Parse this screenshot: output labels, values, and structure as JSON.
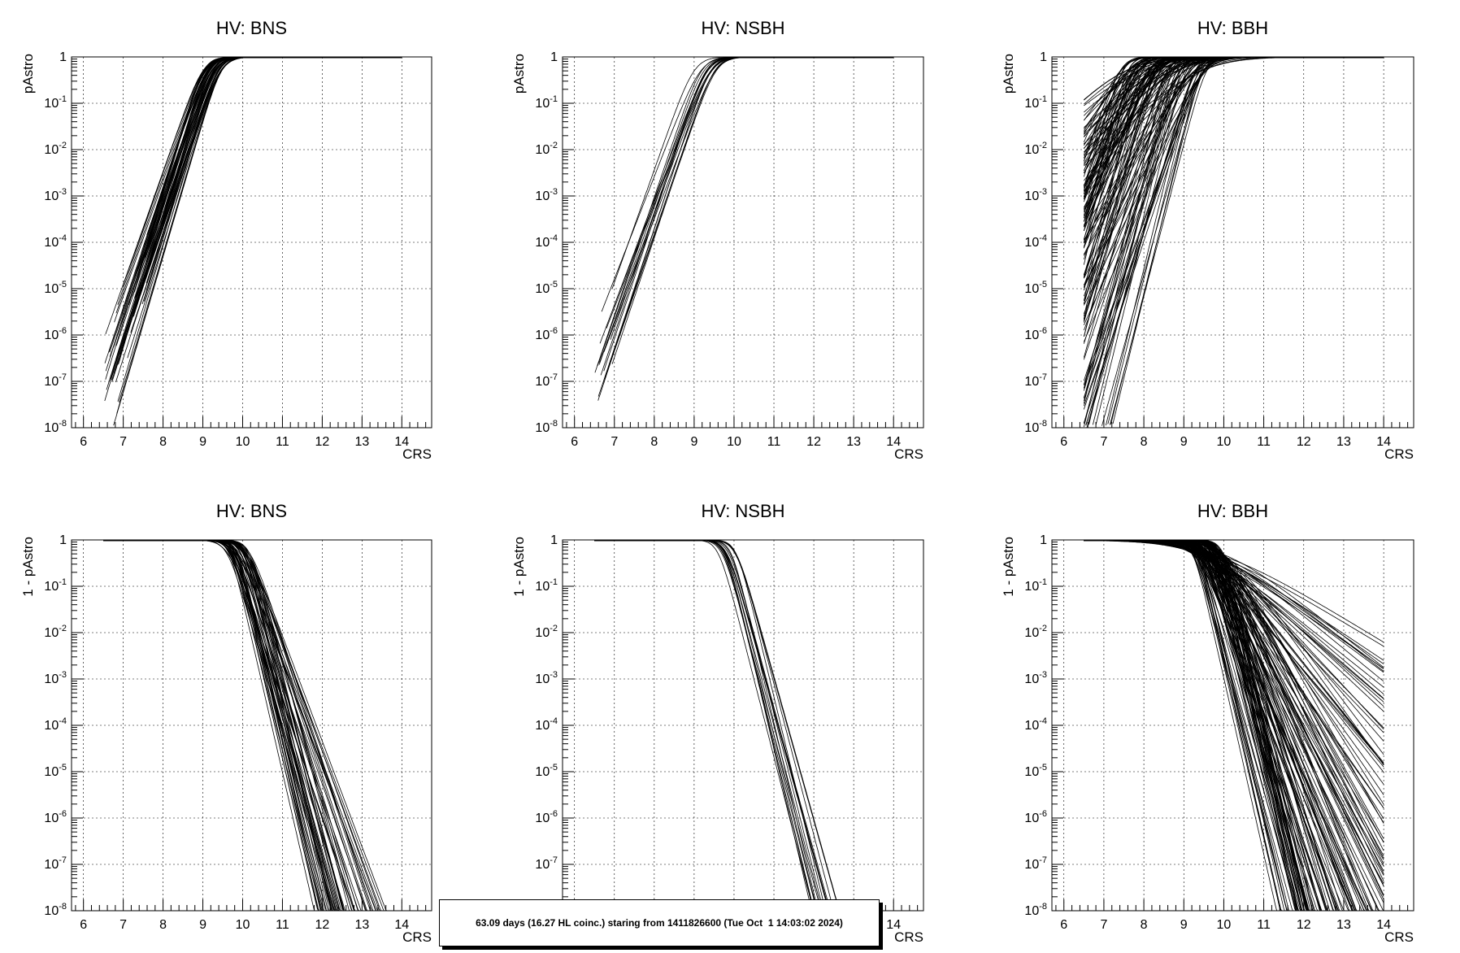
{
  "chart_data": [
    {
      "type": "line",
      "title": "HV: BNS",
      "xlabel": "CRS",
      "ylabel": "pAstro",
      "xlim": [
        5.7,
        14.75
      ],
      "ylim": [
        1e-08,
        1
      ],
      "yscale": "log",
      "grid": true,
      "xticks": [
        "6",
        "7",
        "8",
        "9",
        "10",
        "11",
        "12",
        "13",
        "14"
      ],
      "yticks": [
        "1",
        "10^-1",
        "10^-2",
        "10^-3",
        "10^-4",
        "10^-5",
        "10^-6",
        "10^-7",
        "10^-8"
      ],
      "curve_family": {
        "kind": "rising",
        "count": 60,
        "x_start_range": [
          6.5,
          7.6
        ],
        "x_end": 14,
        "center_range": [
          9.0,
          9.5
        ],
        "slope": 6.2
      }
    },
    {
      "type": "line",
      "title": "HV: NSBH",
      "xlabel": "CRS",
      "ylabel": "pAstro",
      "xlim": [
        5.7,
        14.75
      ],
      "ylim": [
        1e-08,
        1
      ],
      "yscale": "log",
      "grid": true,
      "xticks": [
        "6",
        "7",
        "8",
        "9",
        "10",
        "11",
        "12",
        "13",
        "14"
      ],
      "yticks": [
        "1",
        "10^-1",
        "10^-2",
        "10^-3",
        "10^-4",
        "10^-5",
        "10^-6",
        "10^-7",
        "10^-8"
      ],
      "curve_family": {
        "kind": "rising",
        "count": 18,
        "x_start_range": [
          6.5,
          7.0
        ],
        "x_end": 14,
        "center_range": [
          9.0,
          9.6
        ],
        "slope": 5.6
      }
    },
    {
      "type": "line",
      "title": "HV: BBH",
      "xlabel": "CRS",
      "ylabel": "pAstro",
      "xlim": [
        5.7,
        14.75
      ],
      "ylim": [
        1e-08,
        1
      ],
      "yscale": "log",
      "grid": true,
      "xticks": [
        "6",
        "7",
        "8",
        "9",
        "10",
        "11",
        "12",
        "13",
        "14"
      ],
      "yticks": [
        "1",
        "10^-1",
        "10^-2",
        "10^-3",
        "10^-4",
        "10^-5",
        "10^-6",
        "10^-7",
        "10^-8"
      ],
      "curve_family": {
        "kind": "rising",
        "count": 150,
        "x_start_range": [
          6.5,
          6.5
        ],
        "x_end": 14,
        "center_range": [
          7.4,
          9.6
        ],
        "slope_range": [
          1.6,
          8.5
        ]
      }
    },
    {
      "type": "line",
      "title": "HV: BNS",
      "xlabel": "CRS",
      "ylabel": "1 - pAstro",
      "xlim": [
        5.7,
        14.75
      ],
      "ylim": [
        1e-08,
        1
      ],
      "yscale": "log",
      "grid": true,
      "xticks": [
        "6",
        "7",
        "8",
        "9",
        "10",
        "11",
        "12",
        "13",
        "14"
      ],
      "yticks": [
        "1",
        "10^-1",
        "10^-2",
        "10^-3",
        "10^-4",
        "10^-5",
        "10^-6",
        "10^-7",
        "10^-8"
      ],
      "curve_family": {
        "kind": "falling",
        "count": 60,
        "x_start": 6.5,
        "center_range": [
          9.6,
          10.2
        ],
        "slope_range": [
          5.2,
          9.0
        ]
      }
    },
    {
      "type": "line",
      "title": "HV: NSBH",
      "xlabel": "CRS",
      "ylabel": "1 - pAstro",
      "xlim": [
        5.7,
        14.75
      ],
      "ylim": [
        1e-08,
        1
      ],
      "yscale": "log",
      "grid": true,
      "xticks": [
        "6",
        "7",
        "8",
        "9",
        "10",
        "11",
        "12",
        "13",
        "14"
      ],
      "yticks": [
        "1",
        "10^-1",
        "10^-2",
        "10^-3",
        "10^-4",
        "10^-5",
        "10^-6",
        "10^-7",
        "10^-8"
      ],
      "curve_family": {
        "kind": "falling",
        "count": 18,
        "x_start": 6.5,
        "center_range": [
          9.6,
          10.1
        ],
        "slope_range": [
          7.0,
          8.5
        ]
      }
    },
    {
      "type": "line",
      "title": "HV: BBH",
      "xlabel": "CRS",
      "ylabel": "1 - pAstro",
      "xlim": [
        5.7,
        14.75
      ],
      "ylim": [
        1e-08,
        1
      ],
      "yscale": "log",
      "grid": true,
      "xticks": [
        "6",
        "7",
        "8",
        "9",
        "10",
        "11",
        "12",
        "13",
        "14"
      ],
      "yticks": [
        "1",
        "10^-1",
        "10^-2",
        "10^-3",
        "10^-4",
        "10^-5",
        "10^-6",
        "10^-7",
        "10^-8"
      ],
      "curve_family": {
        "kind": "falling",
        "count": 150,
        "x_start": 6.5,
        "x_end": 14,
        "center_range": [
          9.2,
          10.0
        ],
        "slope_range": [
          1.2,
          9.0
        ]
      }
    }
  ],
  "info_box": "63.09 days (16.27 HL coinc.) staring from 1411826600 (Tue Oct  1 14:03:02 2024)"
}
